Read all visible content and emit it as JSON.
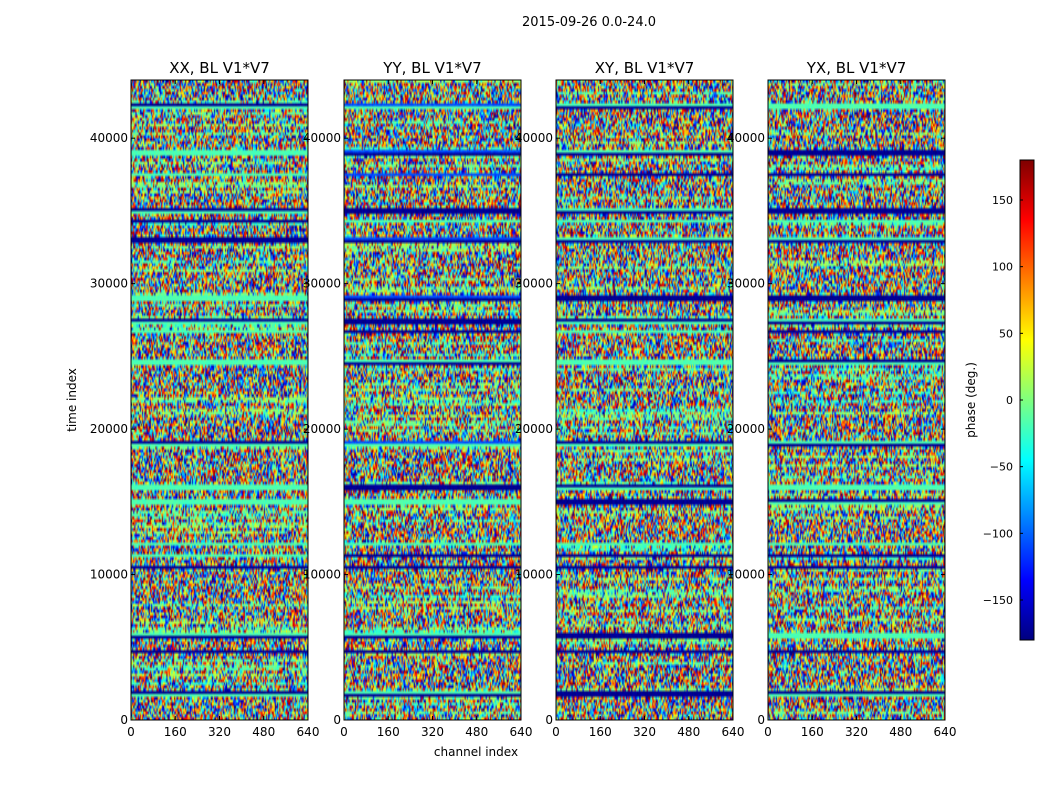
{
  "chart_data": {
    "type": "heatmap",
    "suptitle": "2015-09-26 0.0-24.0",
    "xlabel": "channel index",
    "ylabel": "time index",
    "xlim": [
      0,
      640
    ],
    "ylim": [
      0,
      44000
    ],
    "x_ticks": [
      0,
      160,
      320,
      480,
      640
    ],
    "y_ticks": [
      0,
      10000,
      20000,
      30000,
      40000
    ],
    "panels": [
      {
        "title": "XX, BL V1*V7"
      },
      {
        "title": "YY, BL V1*V7"
      },
      {
        "title": "XY, BL V1*V7"
      },
      {
        "title": "YX, BL V1*V7"
      }
    ],
    "colorbar": {
      "label": "phase (deg.)",
      "range": [
        -180,
        180
      ],
      "ticks": [
        -150,
        -100,
        -50,
        0,
        50,
        100,
        150
      ],
      "colormap": [
        "#00007f",
        "#0000ff",
        "#007fff",
        "#00ffff",
        "#7fff7f",
        "#ffff00",
        "#ff7f00",
        "#ff0000",
        "#7f0000"
      ]
    }
  }
}
